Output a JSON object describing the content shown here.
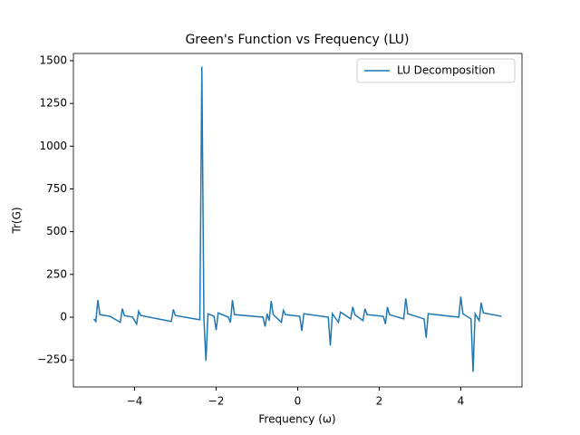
{
  "chart_data": {
    "type": "line",
    "title": "Green's Function vs Frequency (LU)",
    "xlabel": "Frequency (ω)",
    "ylabel": "Tr(G)",
    "x": [
      -5.0,
      -4.95,
      -4.9,
      -4.85,
      -4.6,
      -4.35,
      -4.3,
      -4.25,
      -4.05,
      -3.95,
      -3.9,
      -3.85,
      -3.1,
      -3.05,
      -3.0,
      -2.4,
      -2.35,
      -2.3,
      -2.25,
      -2.2,
      -2.05,
      -2.0,
      -1.95,
      -1.7,
      -1.65,
      -1.6,
      -1.55,
      -0.85,
      -0.8,
      -0.75,
      -0.7,
      -0.65,
      -0.6,
      -0.4,
      -0.35,
      -0.3,
      0.05,
      0.1,
      0.15,
      0.75,
      0.8,
      0.85,
      1.0,
      1.05,
      1.3,
      1.35,
      1.4,
      1.6,
      1.65,
      1.7,
      2.1,
      2.15,
      2.2,
      2.25,
      2.6,
      2.65,
      2.7,
      3.1,
      3.15,
      3.2,
      3.95,
      4.0,
      4.05,
      4.25,
      4.3,
      4.35,
      4.45,
      4.5,
      4.55,
      5.0
    ],
    "series": [
      {
        "name": "LU Decomposition",
        "color": "#1f77b4",
        "values": [
          -10,
          -25,
          100,
          15,
          5,
          -30,
          50,
          10,
          0,
          -40,
          35,
          10,
          -25,
          45,
          10,
          -15,
          1465,
          -5,
          -255,
          20,
          5,
          -75,
          25,
          0,
          -30,
          100,
          15,
          0,
          -55,
          20,
          -20,
          95,
          15,
          -30,
          40,
          15,
          5,
          -80,
          20,
          0,
          -165,
          20,
          -30,
          30,
          -10,
          60,
          15,
          -20,
          50,
          15,
          5,
          -40,
          60,
          15,
          -10,
          110,
          20,
          -10,
          -120,
          20,
          0,
          120,
          20,
          -10,
          -320,
          20,
          -20,
          85,
          25,
          5
        ]
      }
    ],
    "xlim": [
      -5.5,
      5.5
    ],
    "ylim": [
      -408,
      1542
    ],
    "xticks": [
      {
        "value": -4,
        "label": "−4"
      },
      {
        "value": -2,
        "label": "−2"
      },
      0,
      2,
      4
    ],
    "yticks": [
      {
        "value": -250,
        "label": "−250"
      },
      0,
      250,
      500,
      750,
      1000,
      1250,
      1500
    ],
    "legend": "upper right"
  }
}
